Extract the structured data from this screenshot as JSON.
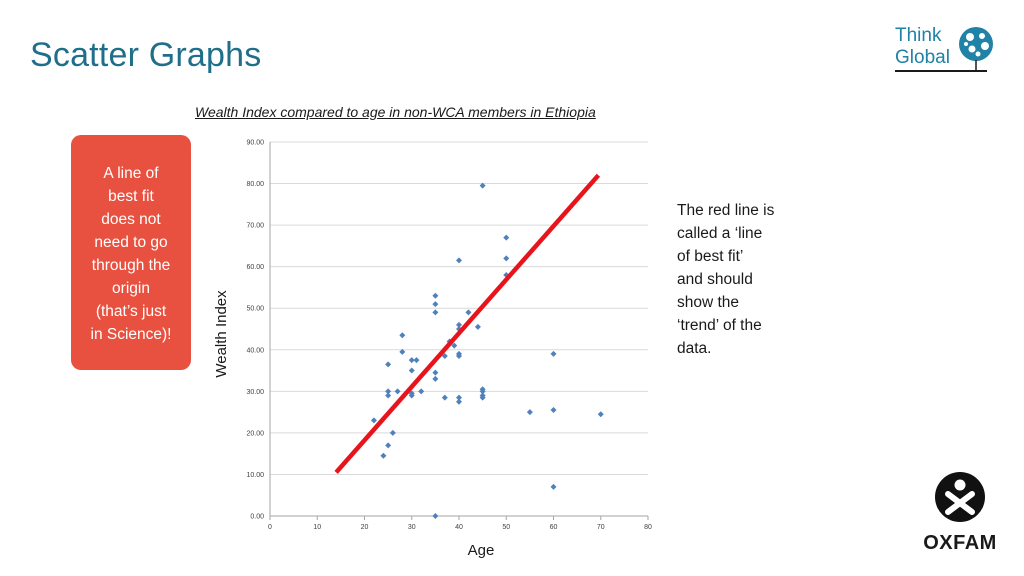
{
  "slide": {
    "title": "Scatter Graphs"
  },
  "logo": {
    "line1": "Think",
    "line2": "Global"
  },
  "callout": {
    "text": "A line of\nbest fit\ndoes not\nneed to go\nthrough the\norigin\n(that’s just\nin Science)!"
  },
  "side_note": {
    "text": "The red line is\ncalled a ‘line\nof best fit’\nand should\nshow the\n‘trend’ of the\ndata."
  },
  "oxfam": {
    "wordmark": "OXFAM"
  },
  "colors": {
    "title": "#1f6f8b",
    "callout": "#e8513f",
    "points": "#4f81bd",
    "best_fit": "#e8141c",
    "gridline": "#d9d9d9"
  },
  "chart_data": {
    "type": "scatter",
    "title": "Wealth Index compared to age in non-WCA members in Ethiopia",
    "xlabel": "Age",
    "ylabel": "Wealth Index",
    "xlim": [
      0,
      80
    ],
    "ylim": [
      0,
      90
    ],
    "x_ticks": [
      0,
      10,
      20,
      30,
      40,
      50,
      60,
      70,
      80
    ],
    "y_ticks": [
      "0.00",
      "10.00",
      "20.00",
      "30.00",
      "40.00",
      "50.00",
      "60.00",
      "70.00",
      "80.00",
      "90.00"
    ],
    "grid": "horizontal",
    "series": [
      {
        "points": [
          [
            22,
            23
          ],
          [
            24,
            14.5
          ],
          [
            25,
            17
          ],
          [
            25,
            30
          ],
          [
            25,
            29
          ],
          [
            25,
            36.5
          ],
          [
            26,
            20
          ],
          [
            27,
            30
          ],
          [
            28,
            43.5
          ],
          [
            28,
            39.5
          ],
          [
            30,
            37.5
          ],
          [
            30,
            35
          ],
          [
            30,
            29.5
          ],
          [
            30,
            29
          ],
          [
            31,
            37.5
          ],
          [
            32,
            30
          ],
          [
            35,
            53
          ],
          [
            35,
            51
          ],
          [
            35,
            49
          ],
          [
            35,
            34.5
          ],
          [
            35,
            33
          ],
          [
            35,
            0
          ],
          [
            37,
            38.5
          ],
          [
            37,
            28.5
          ],
          [
            38,
            42
          ],
          [
            39,
            41
          ],
          [
            40,
            46
          ],
          [
            40,
            45
          ],
          [
            40,
            39
          ],
          [
            40,
            38.5
          ],
          [
            40,
            28.5
          ],
          [
            40,
            27.5
          ],
          [
            40,
            61.5
          ],
          [
            42,
            49
          ],
          [
            44,
            45.5
          ],
          [
            45,
            79.5
          ],
          [
            45,
            30.5
          ],
          [
            45,
            30
          ],
          [
            45,
            29
          ],
          [
            45,
            28.5
          ],
          [
            50,
            67
          ],
          [
            50,
            62
          ],
          [
            50,
            58
          ],
          [
            55,
            25
          ],
          [
            60,
            39
          ],
          [
            60,
            25.5
          ],
          [
            60,
            7
          ],
          [
            70,
            24.5
          ]
        ]
      }
    ],
    "best_fit_line": {
      "from": [
        14,
        10.5
      ],
      "to": [
        69.5,
        82
      ]
    }
  }
}
